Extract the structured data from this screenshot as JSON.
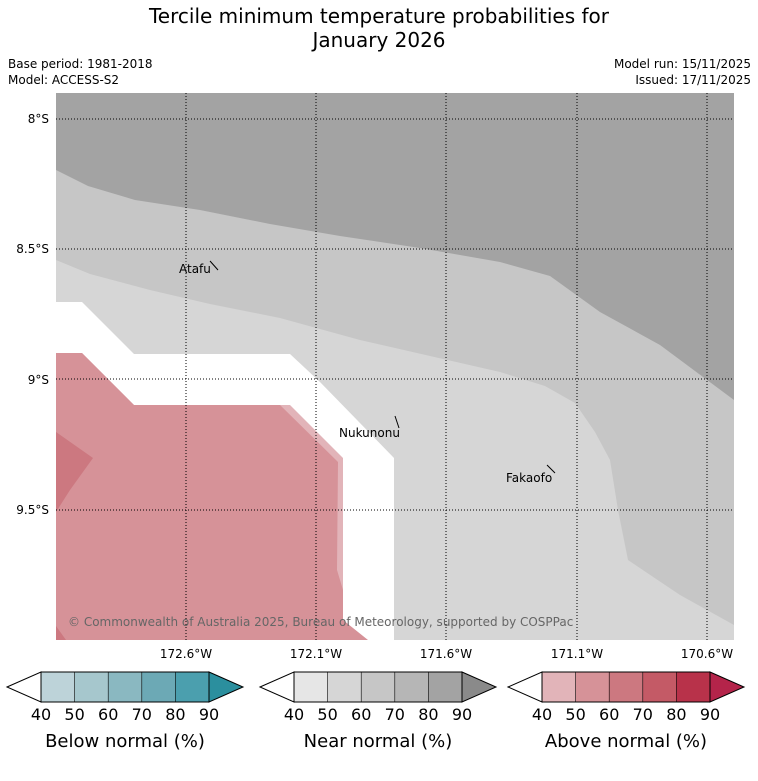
{
  "title_line1": "Tercile minimum temperature probabilities for",
  "title_line2": "January 2026",
  "base_period": "Base period: 1981-2018",
  "model": "Model: ACCESS-S2",
  "model_run": "Model run: 15/11/2025",
  "issued": "Issued: 17/11/2025",
  "latitudes": [
    "8°S",
    "8.5°S",
    "9°S",
    "9.5°S"
  ],
  "longitudes": [
    "172.6°W",
    "172.1°W",
    "171.6°W",
    "171.1°W",
    "170.6°W"
  ],
  "places": [
    {
      "name": "Atafu"
    },
    {
      "name": "Nukunonu"
    },
    {
      "name": "Fakaofo"
    }
  ],
  "copyright": "© Commonwealth of Australia 2025, Bureau of Meteorology, supported by COSPPac",
  "legends": [
    {
      "title": "Below normal (%)",
      "ticks": [
        "40",
        "50",
        "60",
        "70",
        "80",
        "90"
      ],
      "colors": [
        "#bdd3d9",
        "#a6c7cd",
        "#8ab8c1",
        "#6ca9b5",
        "#4b9fae",
        "#2b8f9e"
      ]
    },
    {
      "title": "Near normal (%)",
      "ticks": [
        "40",
        "50",
        "60",
        "70",
        "80",
        "90"
      ],
      "colors": [
        "#e6e6e6",
        "#d6d6d6",
        "#c6c6c6",
        "#b6b6b6",
        "#a3a3a3",
        "#8a8a8a"
      ]
    },
    {
      "title": "Above normal (%)",
      "ticks": [
        "40",
        "50",
        "60",
        "70",
        "80",
        "90"
      ],
      "colors": [
        "#e2b4b9",
        "#d69298",
        "#cc7880",
        "#c45a66",
        "#b8324a",
        "#b4244a"
      ]
    }
  ],
  "zone_colors": {
    "near_80": "#a3a3a3",
    "near_60": "#c6c6c6",
    "near_50": "#d6d6d6",
    "above_50": "#d69298",
    "above_60": "#cc7880",
    "above_40": "#e2b4b9",
    "white": "#ffffff"
  }
}
